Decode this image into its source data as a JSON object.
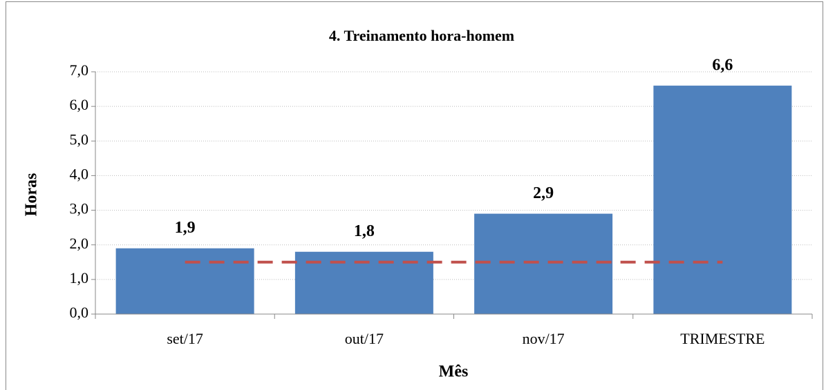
{
  "chart_data": {
    "type": "bar",
    "title": "4. Treinamento hora-homem",
    "x_label": "Mês",
    "y_label": "Horas",
    "categories": [
      "set/17",
      "out/17",
      "nov/17",
      "TRIMESTRE"
    ],
    "values": [
      1.9,
      1.8,
      2.9,
      6.6
    ],
    "value_labels": [
      "1,9",
      "1,8",
      "2,9",
      "6,6"
    ],
    "color": "#4f81bd",
    "target_line": {
      "values": [
        1.5,
        1.5,
        1.5,
        1.5
      ],
      "color": "#c0504d"
    },
    "ylim": [
      0,
      7
    ],
    "yticks": [
      {
        "value": 0,
        "label": "0,0"
      },
      {
        "value": 1,
        "label": "1,0"
      },
      {
        "value": 2,
        "label": "2,0"
      },
      {
        "value": 3,
        "label": "3,0"
      },
      {
        "value": 4,
        "label": "4,0"
      },
      {
        "value": 5,
        "label": "5,0"
      },
      {
        "value": 6,
        "label": "6,0"
      },
      {
        "value": 7,
        "label": "7,0"
      }
    ],
    "grid": true
  }
}
